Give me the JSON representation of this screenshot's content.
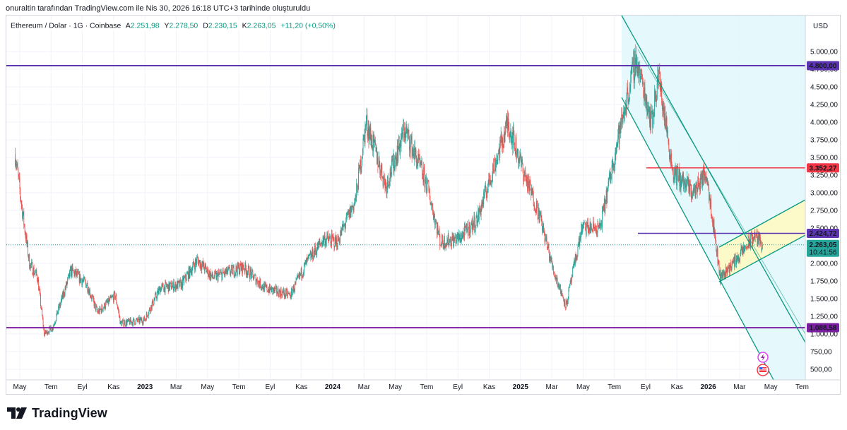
{
  "header": {
    "attribution": "onuraltin tarafından TradingView.com ile Nis 30, 2026 16:18 UTC+3 tarihinde oluşturuldu"
  },
  "legend": {
    "symbol": "Ethereum / Dolar · 1G · Coinbase",
    "o_label": "A",
    "o_value": "2.251,98",
    "h_label": "Y",
    "h_value": "2.278,50",
    "l_label": "D",
    "l_value": "2.230,15",
    "c_label": "K",
    "c_value": "2.263,05",
    "change": "+11,20 (+0,50%)"
  },
  "price_axis": {
    "currency": "USD",
    "ticks": [
      "5.000,00",
      "4.750,00",
      "4.500,00",
      "4.250,00",
      "4.000,00",
      "3.750,00",
      "3.500,00",
      "3.250,00",
      "3.000,00",
      "2.750,00",
      "2.500,00",
      "2.250,00",
      "2.000,00",
      "1.750,00",
      "1.500,00",
      "1.250,00",
      "1.000,00",
      "750,00",
      "500,00"
    ],
    "tick_values": [
      5000,
      4750,
      4500,
      4250,
      4000,
      3750,
      3500,
      3250,
      3000,
      2750,
      2500,
      2250,
      2000,
      1750,
      1500,
      1250,
      1000,
      750,
      500
    ]
  },
  "time_axis": {
    "labels": [
      "May",
      "Tem",
      "Eyl",
      "Kas",
      "2023",
      "Mar",
      "May",
      "Tem",
      "Eyl",
      "Kas",
      "2024",
      "Mar",
      "May",
      "Tem",
      "Eyl",
      "Kas",
      "2025",
      "Mar",
      "May",
      "Tem",
      "Eyl",
      "Kas",
      "2026",
      "Mar",
      "May",
      "Tem"
    ],
    "bold": [
      "2023",
      "2024",
      "2025",
      "2026"
    ]
  },
  "price_labels": {
    "level_4800": "4.800,00",
    "level_3352": "3.352,27",
    "level_2424": "2.424,72",
    "last_price": "2.263,05",
    "countdown": "10:41:56",
    "level_1088": "1.088,58"
  },
  "levels": {
    "purple_top": 4800,
    "red": 3352.27,
    "purple_mid": 2424.72,
    "purple_bottom": 1088.58,
    "last": 2263.05
  },
  "colors": {
    "up": "#26a69a",
    "down": "#ef5350",
    "purple": "#7b1fa2",
    "violet": "#5e35b1",
    "red_line": "#f23645",
    "channel_line": "#089981",
    "channel_fill": "#e0f7fa",
    "small_channel_fill": "#fff9c4",
    "last_price": "#26a69a"
  },
  "logo": {
    "text": "TradingView"
  },
  "chart_data": {
    "type": "candlestick",
    "title": "Ethereum / Dolar · 1G · Coinbase",
    "unit": "USD",
    "ylim": [
      300,
      5400
    ],
    "x_range": [
      "2022-04",
      "2026-08"
    ],
    "close_path_approx": [
      {
        "x": "2022-04-22",
        "y": 3550
      },
      {
        "x": "2022-05-05",
        "y": 2800
      },
      {
        "x": "2022-05-20",
        "y": 2000
      },
      {
        "x": "2022-06-05",
        "y": 1800
      },
      {
        "x": "2022-06-18",
        "y": 1000
      },
      {
        "x": "2022-07-05",
        "y": 1100
      },
      {
        "x": "2022-08-10",
        "y": 1900
      },
      {
        "x": "2022-09-10",
        "y": 1700
      },
      {
        "x": "2022-10-01",
        "y": 1300
      },
      {
        "x": "2022-11-05",
        "y": 1550
      },
      {
        "x": "2022-11-15",
        "y": 1150
      },
      {
        "x": "2023-01-01",
        "y": 1200
      },
      {
        "x": "2023-02-01",
        "y": 1650
      },
      {
        "x": "2023-03-15",
        "y": 1700
      },
      {
        "x": "2023-04-15",
        "y": 2050
      },
      {
        "x": "2023-05-15",
        "y": 1800
      },
      {
        "x": "2023-07-15",
        "y": 1950
      },
      {
        "x": "2023-08-25",
        "y": 1650
      },
      {
        "x": "2023-10-15",
        "y": 1550
      },
      {
        "x": "2023-11-15",
        "y": 2000
      },
      {
        "x": "2023-12-20",
        "y": 2350
      },
      {
        "x": "2024-01-15",
        "y": 2300
      },
      {
        "x": "2024-02-20",
        "y": 2900
      },
      {
        "x": "2024-03-12",
        "y": 4000
      },
      {
        "x": "2024-04-20",
        "y": 3100
      },
      {
        "x": "2024-05-27",
        "y": 3900
      },
      {
        "x": "2024-07-10",
        "y": 3100
      },
      {
        "x": "2024-08-05",
        "y": 2300
      },
      {
        "x": "2024-09-10",
        "y": 2350
      },
      {
        "x": "2024-10-15",
        "y": 2600
      },
      {
        "x": "2024-11-15",
        "y": 3300
      },
      {
        "x": "2024-12-16",
        "y": 4000
      },
      {
        "x": "2025-01-15",
        "y": 3300
      },
      {
        "x": "2025-02-15",
        "y": 2700
      },
      {
        "x": "2025-03-15",
        "y": 1900
      },
      {
        "x": "2025-04-09",
        "y": 1400
      },
      {
        "x": "2025-05-10",
        "y": 2500
      },
      {
        "x": "2025-06-15",
        "y": 2500
      },
      {
        "x": "2025-07-15",
        "y": 3600
      },
      {
        "x": "2025-08-24",
        "y": 4900
      },
      {
        "x": "2025-09-25",
        "y": 4000
      },
      {
        "x": "2025-10-07",
        "y": 4700
      },
      {
        "x": "2025-11-05",
        "y": 3300
      },
      {
        "x": "2025-12-15",
        "y": 3000
      },
      {
        "x": "2026-01-10",
        "y": 3300
      },
      {
        "x": "2026-02-06",
        "y": 1800
      },
      {
        "x": "2026-03-15",
        "y": 2100
      },
      {
        "x": "2026-04-15",
        "y": 2400
      },
      {
        "x": "2026-04-30",
        "y": 2263.05
      }
    ]
  }
}
